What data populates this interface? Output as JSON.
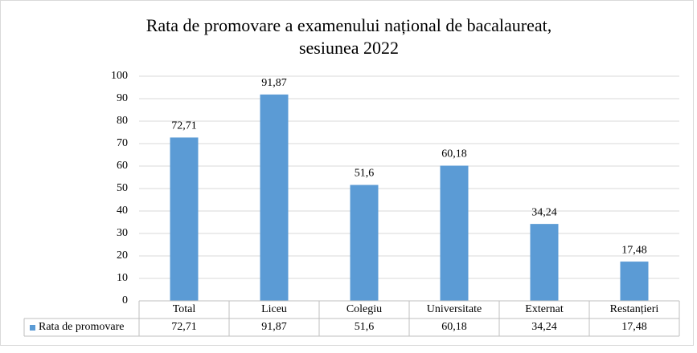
{
  "chart_data": {
    "type": "bar",
    "title": [
      "Rata de promovare a examenului național de bacalaureat,",
      "sesiunea 2022"
    ],
    "categories": [
      "Total",
      "Liceu",
      "Colegiu",
      "Universitate",
      "Externat",
      "Restanțieri"
    ],
    "series": [
      {
        "name": "Rata de promovare",
        "color": "#5b9bd5",
        "values": [
          72.71,
          91.87,
          51.6,
          60.18,
          34.24,
          17.48
        ],
        "value_labels": [
          "72,71",
          "91,87",
          "51,6",
          "60,18",
          "34,24",
          "17,48"
        ]
      }
    ],
    "ylim": [
      0,
      100
    ],
    "yticks": [
      0,
      10,
      20,
      30,
      40,
      50,
      60,
      70,
      80,
      90,
      100
    ],
    "grid": true,
    "data_table": true
  }
}
